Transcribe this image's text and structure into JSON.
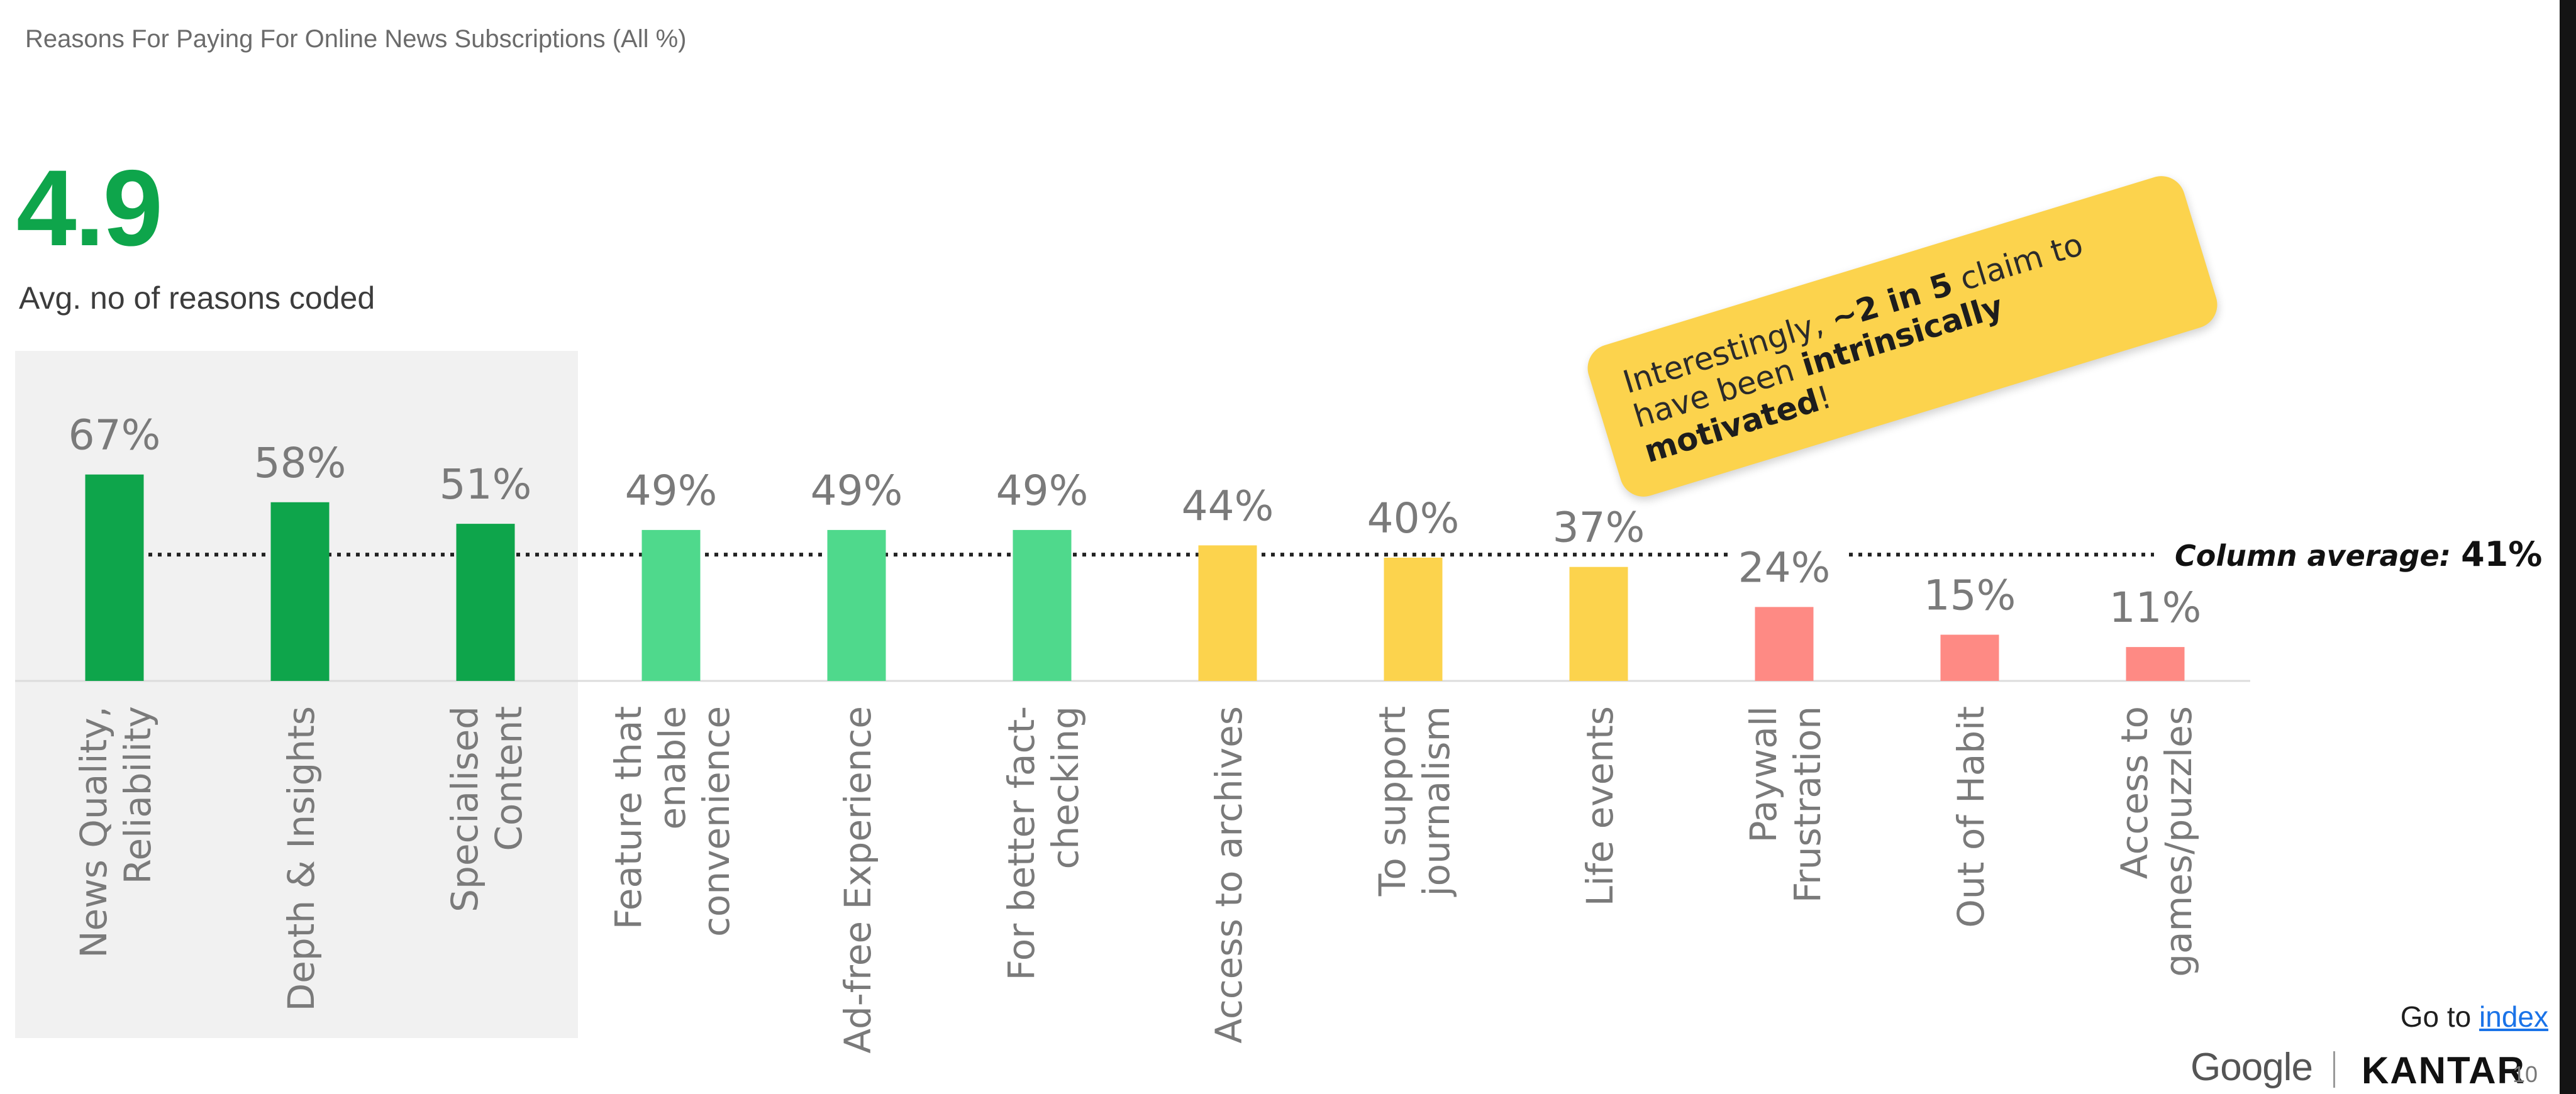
{
  "header": {
    "subtitle": "Reasons For Paying For Online News Subscriptions (All %)"
  },
  "stat": {
    "value": "4.9",
    "label": "Avg. no of reasons coded"
  },
  "callout": {
    "part1": "Interestingly, ",
    "bold1": "~2 in 5",
    "part2": " claim to have been ",
    "bold2": "intrinsically motivated",
    "part3": "!"
  },
  "footer": {
    "goto_text": "Go to",
    "goto_link": "index",
    "brand_google": "Google",
    "brand_kantar": "KANTAR",
    "page_number": "10"
  },
  "colors": {
    "dark_green": "#0ea54b",
    "light_green": "#4fd98c",
    "yellow": "#fcd34d",
    "red": "#fe8a84",
    "label_gray": "#7a7a7a",
    "highlight_panel": "#f1f1f1"
  },
  "chart_data": {
    "type": "bar",
    "categories": [
      [
        "News Quality,",
        "Reliability"
      ],
      [
        "Depth & Insights"
      ],
      [
        "Specialised",
        "Content"
      ],
      [
        "Feature that",
        "enable",
        "convenience"
      ],
      [
        "Ad-free Experience"
      ],
      [
        "For better fact-",
        "checking"
      ],
      [
        "Access to archives"
      ],
      [
        "To support",
        "journalism"
      ],
      [
        "Life events"
      ],
      [
        "Paywall",
        "Frustration"
      ],
      [
        "Out of Habit"
      ],
      [
        "Access to",
        "games/puzzles"
      ]
    ],
    "values": [
      67,
      58,
      51,
      49,
      49,
      49,
      44,
      40,
      37,
      24,
      15,
      11
    ],
    "value_labels": [
      "67%",
      "58%",
      "51%",
      "49%",
      "49%",
      "49%",
      "44%",
      "40%",
      "37%",
      "24%",
      "15%",
      "11%"
    ],
    "bar_colors": [
      "#0ea54b",
      "#0ea54b",
      "#0ea54b",
      "#4fd98c",
      "#4fd98c",
      "#4fd98c",
      "#fcd34d",
      "#fcd34d",
      "#fcd34d",
      "#fe8a84",
      "#fe8a84",
      "#fe8a84"
    ],
    "average": {
      "value": 41,
      "label_prefix": "Column average:",
      "label_value": "41%"
    },
    "ylim": [
      0,
      100
    ],
    "grid": false,
    "legend": "none"
  }
}
